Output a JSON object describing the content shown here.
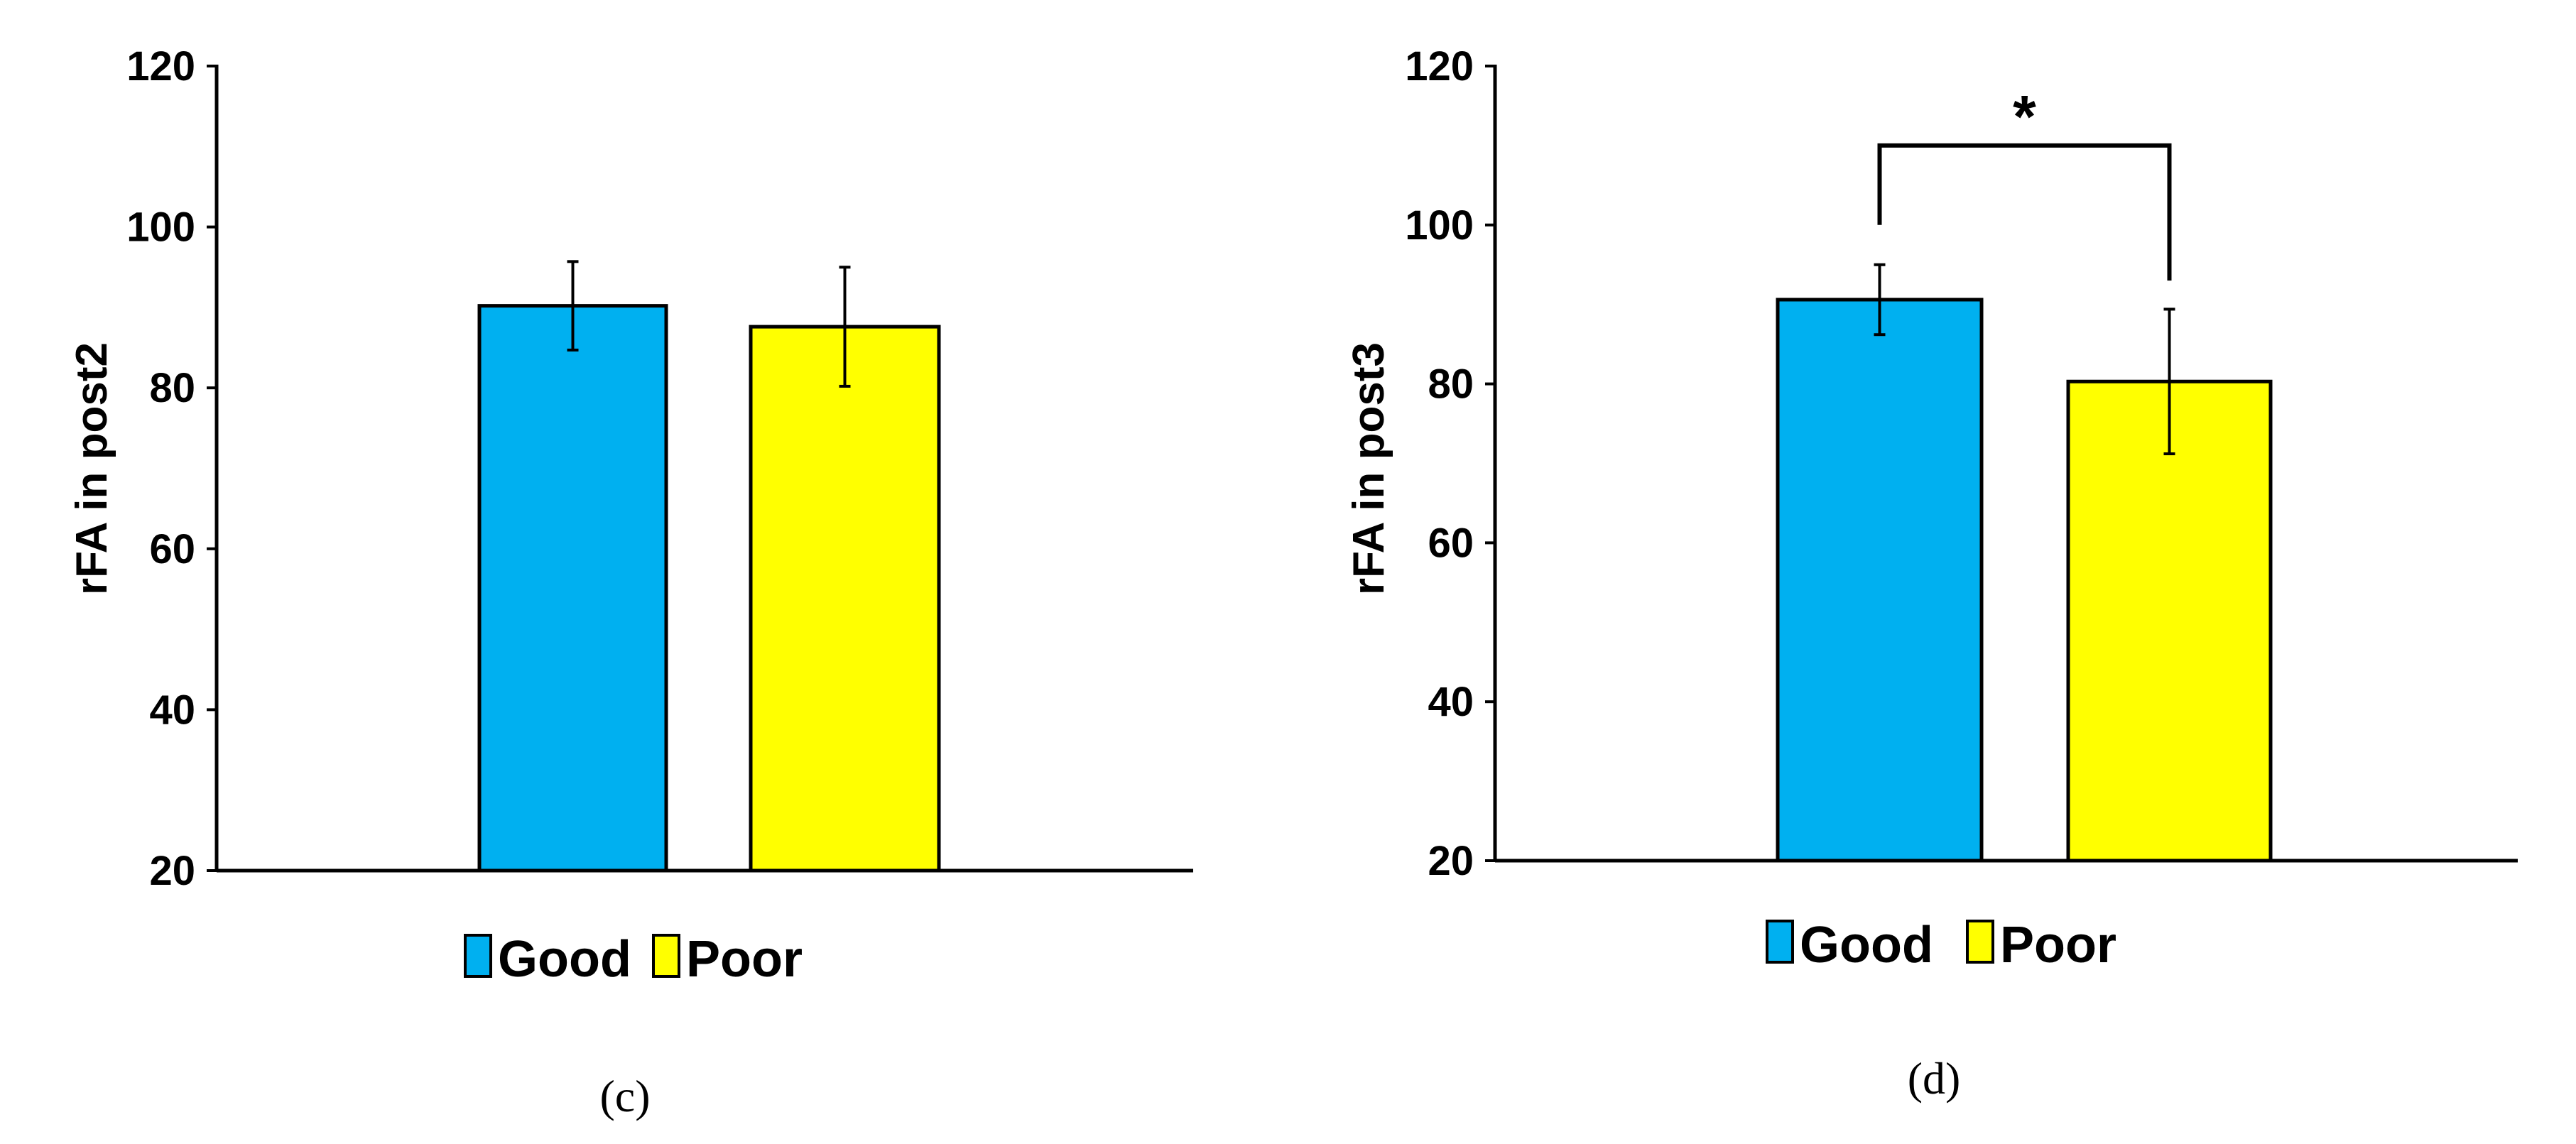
{
  "colors": {
    "good": "#00B0F0",
    "poor": "#FFFF00",
    "axis": "#000000"
  },
  "legend": {
    "items": [
      {
        "label": "Good",
        "color": "#00B0F0"
      },
      {
        "label": "Poor",
        "color": "#FFFF00"
      }
    ]
  },
  "chart_data": [
    {
      "type": "bar",
      "panel_label": "(c)",
      "ylabel": "rFA in post2",
      "xlabel": "",
      "ylim": [
        20,
        120
      ],
      "yticks": [
        20,
        40,
        60,
        80,
        100,
        120
      ],
      "series": [
        {
          "name": "Good",
          "value": 90.2,
          "error": 5.5,
          "color": "#00B0F0"
        },
        {
          "name": "Poor",
          "value": 87.6,
          "error": 7.4,
          "color": "#FFFF00"
        }
      ],
      "significance": null,
      "legend_position": "bottom-center",
      "grid": false
    },
    {
      "type": "bar",
      "panel_label": "(d)",
      "ylabel": "rFA in post3",
      "xlabel": "",
      "ylim": [
        20,
        120
      ],
      "yticks": [
        20,
        40,
        60,
        80,
        100,
        120
      ],
      "series": [
        {
          "name": "Good",
          "value": 90.6,
          "error": 4.4,
          "color": "#00B0F0"
        },
        {
          "name": "Poor",
          "value": 80.3,
          "error": 9.1,
          "color": "#FFFF00"
        }
      ],
      "significance": {
        "marker": "*",
        "between": [
          "Good",
          "Poor"
        ]
      },
      "legend_position": "bottom-center",
      "grid": false
    }
  ]
}
